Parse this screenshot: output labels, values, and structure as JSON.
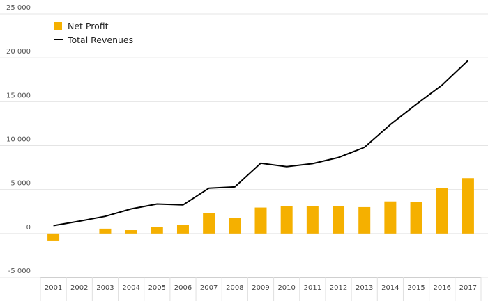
{
  "chart_data": {
    "type": "bar+line",
    "categories": [
      "2001",
      "2002",
      "2003",
      "2004",
      "2005",
      "2006",
      "2007",
      "2008",
      "2009",
      "2010",
      "2011",
      "2012",
      "2013",
      "2014",
      "2015",
      "2016",
      "2017"
    ],
    "series": [
      {
        "name": "Net Profit",
        "type": "bar",
        "color": "#F5B000",
        "values": [
          -800,
          0,
          550,
          380,
          700,
          1000,
          2300,
          1750,
          2950,
          3100,
          3100,
          3100,
          3000,
          3650,
          3550,
          5150,
          6300
        ]
      },
      {
        "name": "Total Revenues",
        "type": "line",
        "color": "#000000",
        "values": [
          900,
          1400,
          1950,
          2800,
          3350,
          3250,
          5150,
          5300,
          8000,
          7600,
          7950,
          8650,
          9800,
          12400,
          14700,
          16900,
          19700
        ]
      }
    ],
    "ylim": [
      -5000,
      25000
    ],
    "yticks": [
      -5000,
      0,
      5000,
      10000,
      15000,
      20000,
      25000
    ],
    "ytick_labels": [
      "-5 000",
      "0",
      "5 000",
      "10 000",
      "15 000",
      "20 000",
      "25 000"
    ],
    "grid": true,
    "legend_position": "top-left"
  },
  "legend": {
    "bar_label": "Net Profit",
    "line_label": "Total Revenues"
  }
}
